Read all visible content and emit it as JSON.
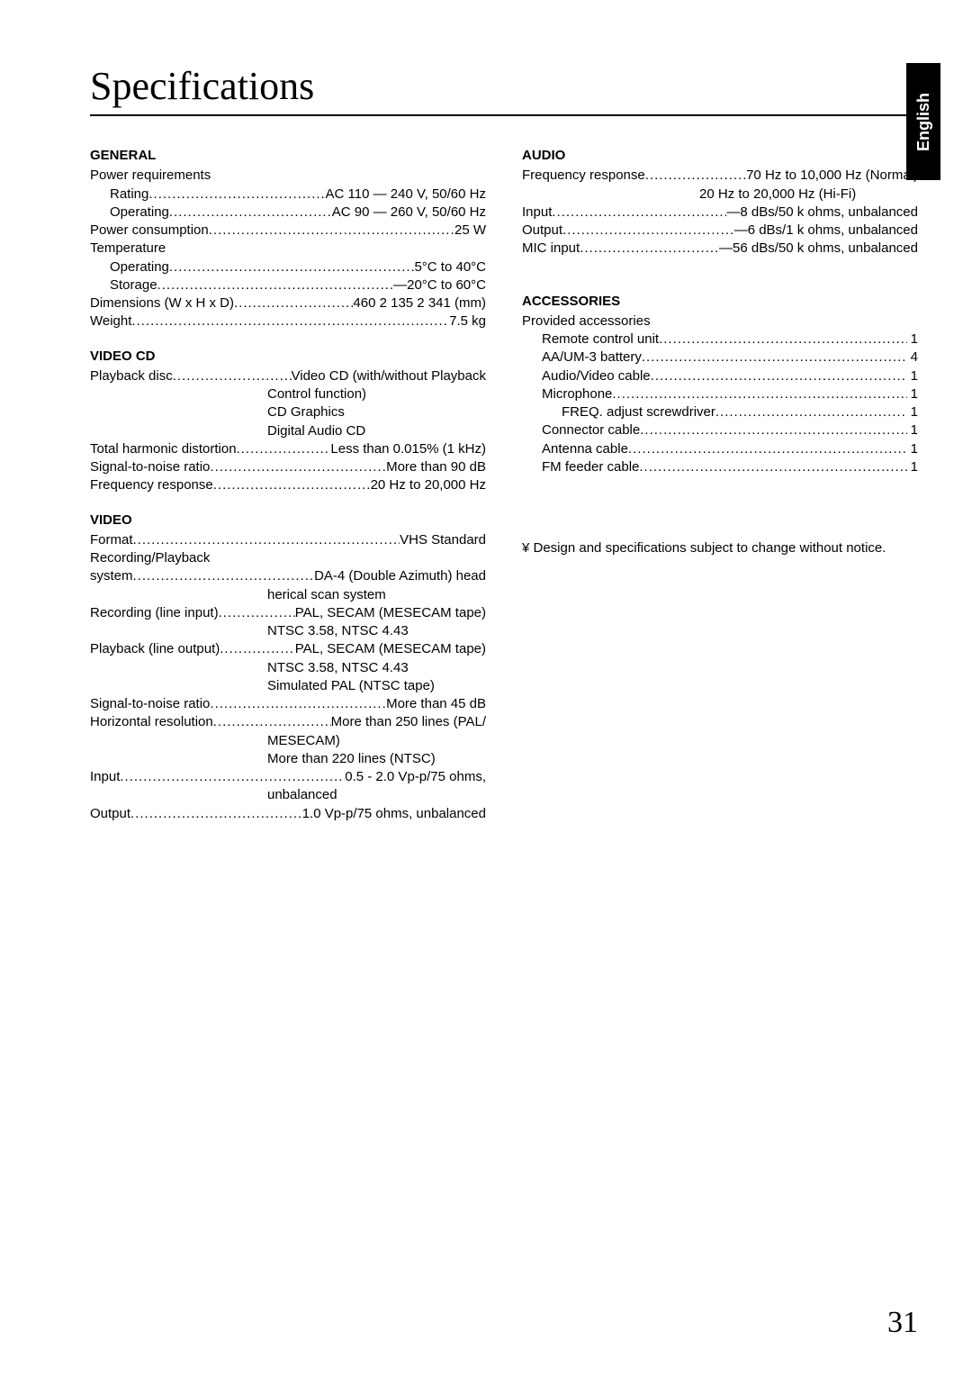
{
  "title": "Specifications",
  "tab": "English",
  "page_number": "31",
  "dots": "................................................................................................................",
  "left": {
    "general": {
      "head": "GENERAL",
      "rows": [
        {
          "label": "Power requirements",
          "value": "",
          "indent": false,
          "dots": false
        },
        {
          "label": "Rating ",
          "value": " AC 110 — 240 V, 50/60 Hz",
          "indent": true,
          "dots": true
        },
        {
          "label": "Operating ",
          "value": " AC 90 — 260 V, 50/60 Hz",
          "indent": true,
          "dots": true
        },
        {
          "label": "Power consumption ",
          "value": " 25 W",
          "indent": false,
          "dots": true
        },
        {
          "label": "Temperature",
          "value": "",
          "indent": false,
          "dots": false
        },
        {
          "label": "Operating ",
          "value": " 5°C to 40°C",
          "indent": true,
          "dots": true
        },
        {
          "label": "Storage ",
          "value": " —20°C to 60°C",
          "indent": true,
          "dots": true
        },
        {
          "label": "Dimensions (W x H x D) ",
          "value": " 460 2  135 2  341 (mm)",
          "indent": false,
          "dots": true
        },
        {
          "label": "Weight ",
          "value": " 7.5 kg",
          "indent": false,
          "dots": true
        }
      ]
    },
    "videocd": {
      "head": "VIDEO CD",
      "rows": [
        {
          "label": "Playback disc ",
          "value": " Video CD (with/without Playback",
          "indent": false,
          "dots": true
        },
        {
          "cont": "Control function)"
        },
        {
          "cont": "CD Graphics"
        },
        {
          "cont": "Digital Audio CD"
        },
        {
          "label": "Total harmonic distortion ",
          "value": " Less than 0.015% (1 kHz)",
          "indent": false,
          "dots": true
        },
        {
          "label": "Signal-to-noise ratio ",
          "value": " More than 90 dB",
          "indent": false,
          "dots": true
        },
        {
          "label": "Frequency response ",
          "value": " 20 Hz to 20,000 Hz",
          "indent": false,
          "dots": true
        }
      ]
    },
    "video": {
      "head": "VIDEO",
      "rows": [
        {
          "label": "Format ",
          "value": " VHS Standard",
          "indent": false,
          "dots": true
        },
        {
          "label": "Recording/Playback",
          "value": "",
          "indent": false,
          "dots": false
        },
        {
          "label": "system ",
          "value": " DA-4 (Double Azimuth) head",
          "indent": false,
          "dots": true
        },
        {
          "cont": "herical scan system"
        },
        {
          "label": "Recording (line input) ",
          "value": " PAL, SECAM (MESECAM tape)",
          "indent": false,
          "dots": true
        },
        {
          "cont": "NTSC 3.58, NTSC 4.43"
        },
        {
          "label": "Playback (line output) ",
          "value": " PAL, SECAM (MESECAM tape)",
          "indent": false,
          "dots": true
        },
        {
          "cont": "NTSC 3.58, NTSC 4.43"
        },
        {
          "cont": "Simulated PAL (NTSC tape)"
        },
        {
          "label": "Signal-to-noise ratio ",
          "value": " More than 45 dB",
          "indent": false,
          "dots": true
        },
        {
          "label": "Horizontal resolution ",
          "value": " More than 250 lines (PAL/",
          "indent": false,
          "dots": true
        },
        {
          "cont": "MESECAM)"
        },
        {
          "cont": "More than 220 lines (NTSC)"
        },
        {
          "label": "Input ",
          "value": " 0.5 - 2.0 Vp-p/75 ohms,",
          "indent": false,
          "dots": true
        },
        {
          "cont": "unbalanced"
        },
        {
          "label": "Output ",
          "value": " 1.0 Vp-p/75 ohms, unbalanced",
          "indent": false,
          "dots": true
        }
      ]
    }
  },
  "right": {
    "audio": {
      "head": "AUDIO",
      "rows": [
        {
          "label": "Frequency response ",
          "value": " 70 Hz to 10,000 Hz (Normal)",
          "indent": false,
          "dots": true
        },
        {
          "cont": "20 Hz to 20,000 Hz (Hi-Fi)"
        },
        {
          "label": "Input ",
          "value": " —8 dBs/50 k ohms, unbalanced",
          "indent": false,
          "dots": true
        },
        {
          "label": "Output ",
          "value": " —6 dBs/1 k ohms, unbalanced",
          "indent": false,
          "dots": true
        },
        {
          "label": "MIC input ",
          "value": " —56 dBs/50 k ohms, unbalanced",
          "indent": false,
          "dots": true
        }
      ]
    },
    "accessories": {
      "head": "ACCESSORIES",
      "intro": "Provided accessories",
      "rows": [
        {
          "label": "Remote control unit ",
          "value": " 1",
          "indent": 1
        },
        {
          "label": "AA/UM-3  battery ",
          "value": " 4",
          "indent": 1
        },
        {
          "label": "Audio/Video cable ",
          "value": " 1",
          "indent": 1
        },
        {
          "label": "Microphone ",
          "value": " 1",
          "indent": 1
        },
        {
          "label": "FREQ. adjust screwdriver ",
          "value": " 1",
          "indent": 2
        },
        {
          "label": "Connector cable ",
          "value": " 1",
          "indent": 1
        },
        {
          "label": "Antenna cable ",
          "value": " 1",
          "indent": 1
        },
        {
          "label": "FM feeder cable ",
          "value": " 1",
          "indent": 1
        }
      ]
    },
    "note": "¥ Design and specifications subject to change without notice."
  }
}
